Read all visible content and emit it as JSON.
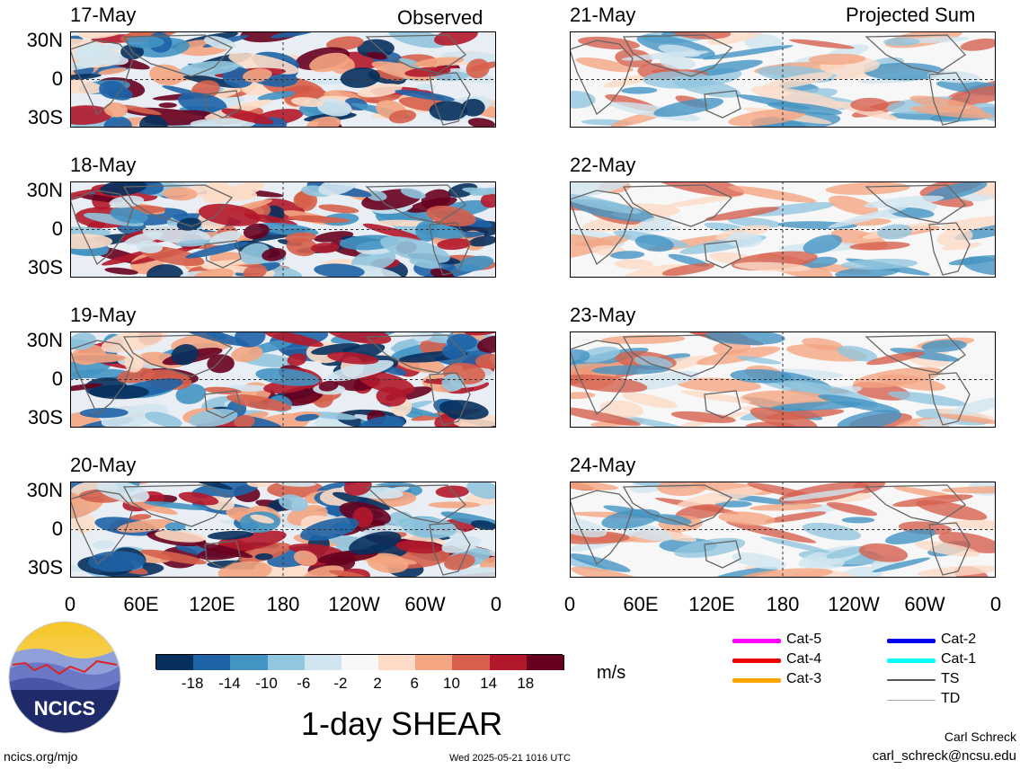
{
  "headers": {
    "left": "Observed",
    "right": "Projected Sum"
  },
  "left_dates": [
    "17-May",
    "18-May",
    "19-May",
    "20-May"
  ],
  "right_dates": [
    "21-May",
    "22-May",
    "23-May",
    "24-May"
  ],
  "lat_labels": [
    "30N",
    "0",
    "30S"
  ],
  "lon_labels": [
    "0",
    "60E",
    "120E",
    "180",
    "120W",
    "60W",
    "0"
  ],
  "colorbar": {
    "ticks": [
      "-18",
      "-14",
      "-10",
      "-6",
      "-2",
      "2",
      "6",
      "10",
      "14",
      "18"
    ],
    "colors": [
      "#07305d",
      "#1e63a6",
      "#4393c3",
      "#92c5de",
      "#d1e5f0",
      "#f7f7f7",
      "#fddbc7",
      "#f4a582",
      "#d6604d",
      "#b2182b",
      "#67001f"
    ],
    "unit": "m/s"
  },
  "title": "1-day SHEAR",
  "legend": [
    {
      "label": "Cat-5",
      "color": "#ff00ff"
    },
    {
      "label": "Cat-4",
      "color": "#ee0000"
    },
    {
      "label": "Cat-3",
      "color": "#ffa500"
    },
    {
      "label": "Cat-2",
      "color": "#0000ee"
    },
    {
      "label": "Cat-1",
      "color": "#00ffff"
    },
    {
      "label": "TS",
      "color": "#555555"
    },
    {
      "label": "TD",
      "color": "#aaaaaa"
    }
  ],
  "logo": {
    "text": "NCICS"
  },
  "footer": {
    "left": "ncics.org/mjo",
    "center": "Wed 2025-05-21 1016 UTC",
    "author": "Carl Schreck",
    "email": "carl_schreck@ncsu.edu"
  }
}
